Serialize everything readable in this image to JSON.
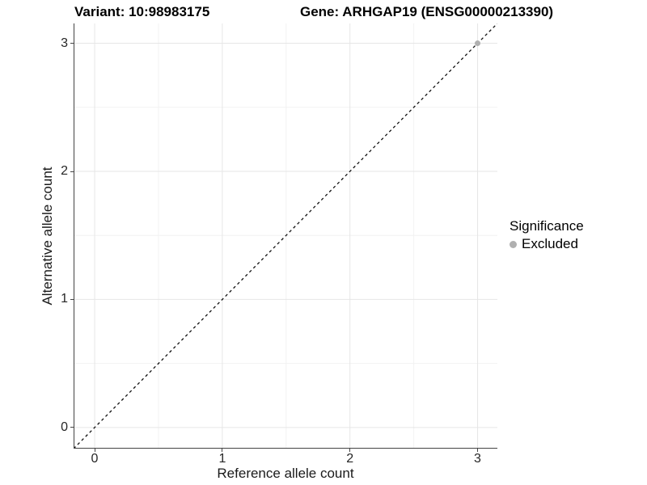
{
  "chart_data": {
    "type": "scatter",
    "titles": [
      "Variant: 10:98983175",
      "Gene: ARHGAP19 (ENSG00000213390)"
    ],
    "xlabel": "Reference allele count",
    "ylabel": "Alternative allele count",
    "xlim": [
      -0.165,
      3.155
    ],
    "ylim": [
      -0.165,
      3.155
    ],
    "x_ticks": [
      0,
      1,
      2,
      3
    ],
    "y_ticks": [
      0,
      1,
      2,
      3
    ],
    "x_minor_ticks": [
      0.5,
      1.5,
      2.5
    ],
    "y_minor_ticks": [
      0.5,
      1.5,
      2.5
    ],
    "grid": "major+minor",
    "reference_line": {
      "kind": "identity y=x",
      "style": "dashed",
      "color": "#111111"
    },
    "series": [
      {
        "name": "Excluded",
        "marker": "circle",
        "color": "#b0b0b0",
        "points": [
          {
            "x": 3,
            "y": 3
          }
        ]
      }
    ],
    "legend": {
      "title": "Significance",
      "position": "right",
      "items": [
        {
          "label": "Excluded",
          "color": "#b0b0b0"
        }
      ]
    },
    "colors": {
      "grid_major": "#e6e6e6",
      "grid_minor": "#f2f2f2",
      "axis_line": "#444444",
      "point": "#b0b0b0"
    }
  }
}
